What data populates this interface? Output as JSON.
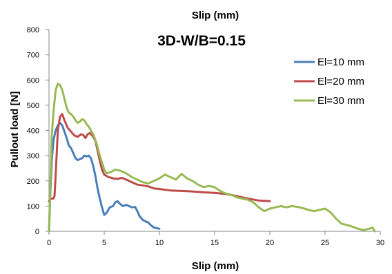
{
  "chart_data": {
    "type": "line",
    "top_title": "Slip (mm)",
    "title": "3D-W/B=0.15",
    "xlabel": "Slip (mm)",
    "ylabel": "Pullout load [N]",
    "xlim": [
      0,
      30
    ],
    "ylim": [
      0,
      800
    ],
    "xticks": [
      0,
      5,
      10,
      15,
      20,
      25,
      30
    ],
    "yticks": [
      0,
      100,
      200,
      300,
      400,
      500,
      600,
      700,
      800
    ],
    "grid": false,
    "legend_position": "top-right",
    "series": [
      {
        "name": "El=10 mm",
        "color": "#4a7ebb",
        "points": [
          [
            0,
            0
          ],
          [
            0.1,
            130
          ],
          [
            0.25,
            280
          ],
          [
            0.4,
            360
          ],
          [
            0.6,
            400
          ],
          [
            0.8,
            420
          ],
          [
            1.0,
            430
          ],
          [
            1.2,
            420
          ],
          [
            1.4,
            395
          ],
          [
            1.6,
            370
          ],
          [
            1.8,
            340
          ],
          [
            2.0,
            330
          ],
          [
            2.2,
            310
          ],
          [
            2.4,
            290
          ],
          [
            2.6,
            282
          ],
          [
            2.8,
            287
          ],
          [
            3.0,
            290
          ],
          [
            3.2,
            300
          ],
          [
            3.4,
            297
          ],
          [
            3.6,
            300
          ],
          [
            3.8,
            290
          ],
          [
            4.0,
            260
          ],
          [
            4.2,
            220
          ],
          [
            4.4,
            170
          ],
          [
            4.6,
            130
          ],
          [
            4.8,
            95
          ],
          [
            5.0,
            65
          ],
          [
            5.2,
            72
          ],
          [
            5.5,
            95
          ],
          [
            5.8,
            100
          ],
          [
            6.0,
            115
          ],
          [
            6.2,
            120
          ],
          [
            6.4,
            110
          ],
          [
            6.7,
            100
          ],
          [
            7.0,
            105
          ],
          [
            7.5,
            95
          ],
          [
            7.8,
            97
          ],
          [
            8.0,
            80
          ],
          [
            8.2,
            60
          ],
          [
            8.5,
            45
          ],
          [
            8.8,
            38
          ],
          [
            9.0,
            35
          ],
          [
            9.2,
            25
          ],
          [
            9.5,
            15
          ],
          [
            10.0,
            10
          ]
        ]
      },
      {
        "name": "El=20 mm",
        "color": "#be4b48",
        "points": [
          [
            0,
            120
          ],
          [
            0.2,
            130
          ],
          [
            0.4,
            130
          ],
          [
            0.5,
            140
          ],
          [
            0.6,
            220
          ],
          [
            0.8,
            400
          ],
          [
            1.0,
            455
          ],
          [
            1.2,
            465
          ],
          [
            1.4,
            440
          ],
          [
            1.7,
            410
          ],
          [
            2.0,
            395
          ],
          [
            2.3,
            380
          ],
          [
            2.6,
            375
          ],
          [
            2.9,
            385
          ],
          [
            3.1,
            382
          ],
          [
            3.3,
            370
          ],
          [
            3.5,
            385
          ],
          [
            3.7,
            390
          ],
          [
            4.0,
            375
          ],
          [
            4.2,
            360
          ],
          [
            4.4,
            320
          ],
          [
            4.6,
            280
          ],
          [
            4.8,
            245
          ],
          [
            5.0,
            225
          ],
          [
            5.4,
            215
          ],
          [
            5.8,
            210
          ],
          [
            6.2,
            208
          ],
          [
            6.6,
            212
          ],
          [
            7.0,
            205
          ],
          [
            7.5,
            195
          ],
          [
            8.0,
            185
          ],
          [
            8.5,
            182
          ],
          [
            9.0,
            178
          ],
          [
            9.5,
            170
          ],
          [
            10.0,
            168
          ],
          [
            11,
            162
          ],
          [
            12,
            160
          ],
          [
            13,
            158
          ],
          [
            14,
            155
          ],
          [
            15,
            152
          ],
          [
            16,
            148
          ],
          [
            17,
            140
          ],
          [
            18,
            130
          ],
          [
            19,
            122
          ],
          [
            20,
            120
          ]
        ]
      },
      {
        "name": "El=30 mm",
        "color": "#98b954",
        "points": [
          [
            0,
            0
          ],
          [
            0.1,
            150
          ],
          [
            0.25,
            380
          ],
          [
            0.4,
            470
          ],
          [
            0.6,
            560
          ],
          [
            0.8,
            585
          ],
          [
            1.0,
            580
          ],
          [
            1.2,
            560
          ],
          [
            1.4,
            525
          ],
          [
            1.6,
            490
          ],
          [
            1.8,
            470
          ],
          [
            2.0,
            465
          ],
          [
            2.2,
            455
          ],
          [
            2.4,
            440
          ],
          [
            2.6,
            430
          ],
          [
            2.8,
            435
          ],
          [
            3.0,
            445
          ],
          [
            3.2,
            440
          ],
          [
            3.4,
            425
          ],
          [
            3.6,
            415
          ],
          [
            3.8,
            400
          ],
          [
            4.0,
            385
          ],
          [
            4.3,
            350
          ],
          [
            4.6,
            300
          ],
          [
            5.0,
            245
          ],
          [
            5.2,
            230
          ],
          [
            5.6,
            235
          ],
          [
            6.0,
            245
          ],
          [
            6.5,
            240
          ],
          [
            7.0,
            230
          ],
          [
            7.5,
            215
          ],
          [
            8.0,
            205
          ],
          [
            8.5,
            195
          ],
          [
            9.0,
            190
          ],
          [
            9.5,
            200
          ],
          [
            10,
            210
          ],
          [
            10.5,
            225
          ],
          [
            11,
            215
          ],
          [
            11.5,
            205
          ],
          [
            12,
            228
          ],
          [
            12.5,
            210
          ],
          [
            13,
            200
          ],
          [
            13.5,
            185
          ],
          [
            14,
            175
          ],
          [
            14.5,
            180
          ],
          [
            15,
            175
          ],
          [
            15.5,
            160
          ],
          [
            16,
            150
          ],
          [
            16.5,
            145
          ],
          [
            17,
            135
          ],
          [
            17.5,
            130
          ],
          [
            18,
            125
          ],
          [
            18.5,
            115
          ],
          [
            19,
            95
          ],
          [
            19.5,
            80
          ],
          [
            20,
            90
          ],
          [
            20.5,
            95
          ],
          [
            21,
            100
          ],
          [
            21.5,
            95
          ],
          [
            22,
            100
          ],
          [
            22.5,
            97
          ],
          [
            23,
            92
          ],
          [
            23.5,
            85
          ],
          [
            24,
            80
          ],
          [
            24.5,
            85
          ],
          [
            25,
            90
          ],
          [
            25.5,
            75
          ],
          [
            26,
            50
          ],
          [
            26.5,
            30
          ],
          [
            27,
            25
          ],
          [
            27.5,
            18
          ],
          [
            28,
            10
          ],
          [
            28.5,
            5
          ],
          [
            29,
            10
          ],
          [
            29.3,
            15
          ],
          [
            29.5,
            0
          ]
        ]
      }
    ]
  }
}
